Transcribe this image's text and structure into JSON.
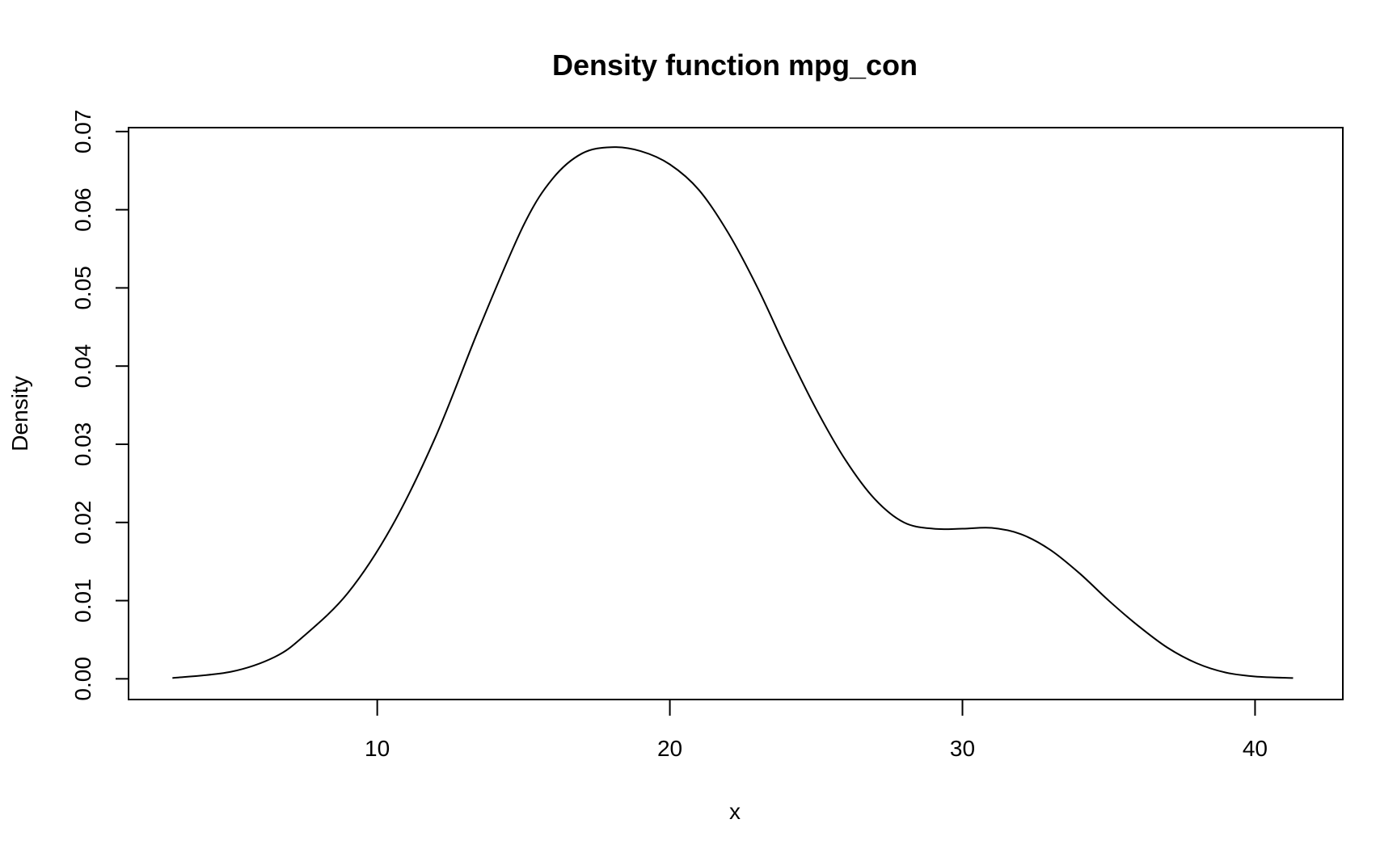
{
  "chart_data": {
    "type": "line",
    "title": "Density function mpg_con",
    "xlabel": "x",
    "ylabel": "Density",
    "xlim": [
      1.5,
      43
    ],
    "ylim": [
      -0.00265,
      0.0705
    ],
    "x_ticks": [
      10,
      20,
      30,
      40
    ],
    "y_ticks": [
      0.0,
      0.01,
      0.02,
      0.03,
      0.04,
      0.05,
      0.06,
      0.07
    ],
    "y_tick_labels": [
      "0.00",
      "0.01",
      "0.02",
      "0.03",
      "0.04",
      "0.05",
      "0.06",
      "0.07"
    ],
    "x_tick_labels": [
      "10",
      "20",
      "30",
      "40"
    ],
    "grid": false,
    "legend": "none",
    "series": [
      {
        "color": "#000000",
        "x": [
          3.0,
          5.0,
          6.5,
          7.5,
          9.0,
          10.5,
          12.0,
          13.5,
          15.0,
          16.0,
          17.0,
          18.0,
          19.0,
          20.0,
          21.0,
          22.0,
          23.0,
          24.0,
          25.0,
          26.0,
          27.0,
          28.0,
          29.0,
          30.0,
          31.0,
          32.0,
          33.0,
          34.0,
          35.0,
          36.0,
          37.0,
          38.0,
          39.0,
          40.0,
          41.3
        ],
        "y": [
          0.0001,
          0.0009,
          0.0028,
          0.0055,
          0.011,
          0.0195,
          0.031,
          0.045,
          0.058,
          0.064,
          0.0672,
          0.068,
          0.0675,
          0.0658,
          0.0625,
          0.057,
          0.05,
          0.042,
          0.0345,
          0.028,
          0.023,
          0.02,
          0.0192,
          0.0192,
          0.0193,
          0.0185,
          0.0165,
          0.0135,
          0.01,
          0.0068,
          0.004,
          0.002,
          0.0008,
          0.0003,
          0.0001
        ]
      }
    ]
  }
}
